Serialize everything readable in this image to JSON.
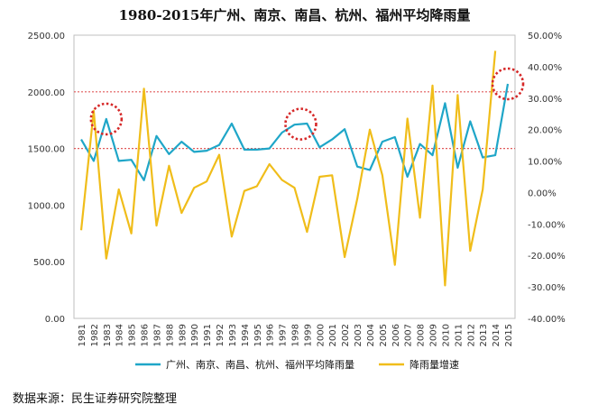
{
  "title": "1980-2015年广州、南京、南昌、杭州、福州平均降雨量",
  "source": "数据来源：民生证券研究院整理",
  "chart_data": {
    "type": "line",
    "title": "1980-2015年广州、南京、南昌、杭州、福州平均降雨量",
    "x": [
      "1981",
      "1982",
      "1983",
      "1984",
      "1985",
      "1986",
      "1987",
      "1988",
      "1989",
      "1990",
      "1991",
      "1992",
      "1993",
      "1994",
      "1995",
      "1996",
      "1997",
      "1998",
      "1999",
      "2000",
      "2001",
      "2002",
      "2003",
      "2004",
      "2005",
      "2006",
      "2007",
      "2008",
      "2009",
      "2010",
      "2011",
      "2012",
      "2013",
      "2014",
      "2015"
    ],
    "y_left_ticks": [
      "0.00",
      "500.00",
      "1000.00",
      "1500.00",
      "2000.00",
      "2500.00"
    ],
    "y_right_ticks": [
      "-40.00%",
      "-30.00%",
      "-20.00%",
      "-10.00%",
      "0.00%",
      "10.00%",
      "20.00%",
      "30.00%",
      "40.00%",
      "50.00%"
    ],
    "ylim_left": [
      0,
      2500
    ],
    "ylim_right": [
      -40,
      50
    ],
    "reference_lines_left": [
      2000,
      1500
    ],
    "series": [
      {
        "name": "广州、南京、南昌、杭州、福州平均降雨量",
        "axis": "left",
        "color": "#1fa6c8",
        "values": [
          1580,
          1390,
          1760,
          1390,
          1400,
          1220,
          1610,
          1450,
          1560,
          1470,
          1480,
          1530,
          1720,
          1490,
          1490,
          1500,
          1640,
          1710,
          1720,
          1510,
          1580,
          1670,
          1340,
          1310,
          1560,
          1600,
          1250,
          1540,
          1440,
          1900,
          1330,
          1740,
          1420,
          1440,
          2070
        ]
      },
      {
        "name": "降雨量增速",
        "axis": "right",
        "color": "#f0bd1a",
        "values": [
          -12,
          26,
          -21,
          1,
          -13,
          33,
          -10.5,
          8.5,
          -6.5,
          1.5,
          3.5,
          12,
          -14,
          0.5,
          2,
          9,
          4,
          1.5,
          -12.5,
          5,
          5.5,
          -20.5,
          -2,
          20,
          5.5,
          -23,
          23.5,
          -8,
          34,
          -29.5,
          31,
          -18.5,
          1,
          45,
          null
        ]
      }
    ],
    "legend_placement": "bottom",
    "annotations": [
      "dotted red circles marking peaks at 1983, 1998-1999 and 2015"
    ]
  }
}
